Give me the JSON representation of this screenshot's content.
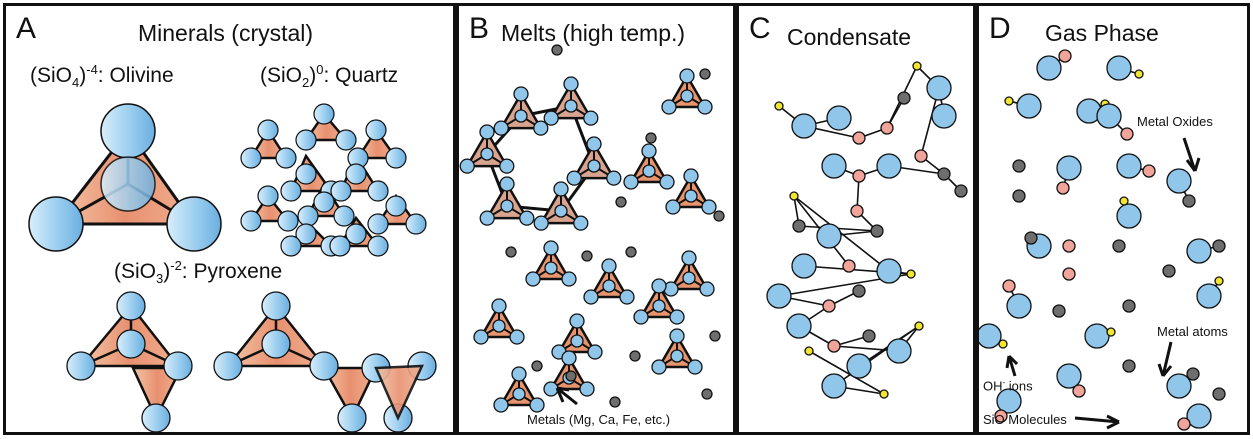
{
  "panels": {
    "a": {
      "letter": "A",
      "title": "Minerals (crystal)",
      "olivine_base": "(SiO",
      "olivine_sub": "4",
      "olivine_sup": ")-4",
      "olivine_name": ": Olivine",
      "quartz_base": "(SiO",
      "quartz_sub": "2",
      "quartz_sup": ")0",
      "quartz_name": ": Quartz",
      "pyroxene_base": "(SiO",
      "pyroxene_sub": "3",
      "pyroxene_sup": ")-2",
      "pyroxene_name": ": Pyroxene"
    },
    "b": {
      "letter": "B",
      "title": "Melts (high temp.)",
      "metals_label": "Metals (Mg, Ca, Fe, etc.)"
    },
    "c": {
      "letter": "C",
      "title": "Condensate"
    },
    "d": {
      "letter": "D",
      "title": "Gas Phase",
      "metal_oxides_label": "Metal Oxides",
      "metal_atoms_label": "Metal atoms",
      "oh_base": "OH",
      "oh_sup": "-",
      "oh_rest": " ions",
      "sio_label": "SiO Molecules"
    }
  },
  "colors": {
    "frame": "#111111",
    "oxygen_blue": "#8fc6ea",
    "tetra_orange": "#e8946d",
    "node_pink": "#f0a49a",
    "metal_gray": "#6e6e6e",
    "hydrogen_yellow": "#f2e630"
  }
}
